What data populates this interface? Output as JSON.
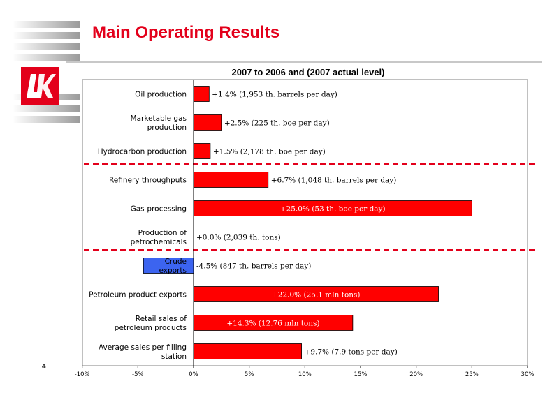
{
  "slide": {
    "title": "Main Operating Results",
    "page_number": "4"
  },
  "colors": {
    "accent": "#e3001b",
    "positive_bar": "#ff0000",
    "negative_bar": "#3c64f0",
    "divider": "#e3001b"
  },
  "logo": {
    "icon": "lukoil-logo-icon",
    "text": "ЛУК"
  },
  "chart_data": {
    "type": "bar",
    "orientation": "horizontal",
    "title": "2007 to 2006 and (2007 actual level)",
    "categories": [
      "Oil production",
      "Marketable gas production",
      "Hydrocarbon production",
      "Refinery throughputs",
      "Gas-processing",
      "Production of petrochemicals",
      "Crude exports",
      "Petroleum product exports",
      "Retail sales of petroleum products",
      "Average sales per filling station"
    ],
    "category_label_lines": [
      [
        "Oil production"
      ],
      [
        "Marketable gas",
        "production"
      ],
      [
        "Hydrocarbon production"
      ],
      [
        "Refinery throughputs"
      ],
      [
        "Gas-processing"
      ],
      [
        "Production of",
        "petrochemicals"
      ],
      [
        "Crude",
        "exports"
      ],
      [
        "Petroleum product exports"
      ],
      [
        "Retail sales of",
        "petroleum products"
      ],
      [
        "Average sales per filling",
        "station"
      ]
    ],
    "values": [
      1.4,
      2.5,
      1.5,
      6.7,
      25.0,
      0.0,
      -4.5,
      22.0,
      14.3,
      9.7
    ],
    "data_labels": [
      "+1.4% (1,953 th. barrels per day)",
      "+2.5% (225 th. boe per day)",
      "+1.5% (2,178 th. boe per day)",
      "+6.7% (1,048 th. barrels per day)",
      "+25.0% (53 th. boe per day)",
      "+0.0% (2,039 th. tons)",
      "-4.5% (847 th. barrels per day)",
      "+22.0% (25.1 mln tons)",
      "+14.3% (12.76 mln tons)",
      "+9.7% (7.9 tons per day)"
    ],
    "xlim": [
      -10,
      30
    ],
    "x_ticks": [
      -10,
      -5,
      0,
      5,
      10,
      15,
      20,
      25,
      30
    ],
    "x_tick_labels": [
      "-10%",
      "-5%",
      "0%",
      "5%",
      "10%",
      "15%",
      "20%",
      "25%",
      "30%"
    ],
    "group_dividers_after": [
      2,
      5
    ],
    "grid": false,
    "legend": "none"
  }
}
